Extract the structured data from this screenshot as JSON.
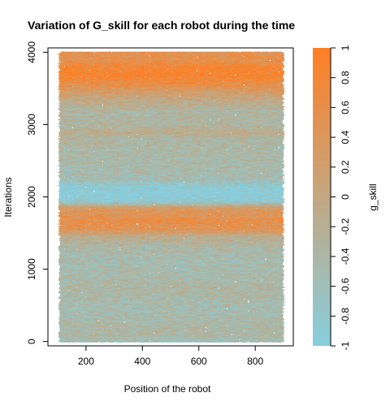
{
  "chart_data": {
    "type": "scatter",
    "title": "Variation of G_skill for each robot during the time",
    "xlabel": "Position of the robot",
    "ylabel": "Iterations",
    "xlim": [
      65,
      935
    ],
    "ylim": [
      -60,
      4060
    ],
    "x_ticks": [
      200,
      400,
      600,
      800
    ],
    "y_ticks": [
      0,
      1000,
      2000,
      3000,
      4000
    ],
    "x_range": [
      110,
      900
    ],
    "y_range": [
      0,
      4000
    ],
    "color_variable": "g_skill",
    "colorbar": {
      "label": "g_skill",
      "range": [
        -1,
        1
      ],
      "ticks": [
        -1,
        -0.8,
        -0.6,
        -0.4,
        -0.2,
        0,
        0.2,
        0.4,
        0.6,
        0.8,
        1
      ],
      "tick_labels": [
        "-1",
        "-0.8",
        "-0.6",
        "-0.4",
        "-0.2",
        "0",
        "0.2",
        "0.4",
        "0.6",
        "0.8",
        "1"
      ],
      "low_color": "#87CEDE",
      "high_color": "#FF7F24"
    },
    "band_profile": {
      "iterations": [
        0,
        100,
        300,
        500,
        700,
        900,
        1100,
        1300,
        1450,
        1550,
        1650,
        1750,
        1850,
        1950,
        2050,
        2150,
        2250,
        2400,
        2600,
        2800,
        2900,
        3000,
        3200,
        3400,
        3500,
        3600,
        3700,
        3800,
        3900,
        4000
      ],
      "mean_g_skill": [
        -0.6,
        -0.35,
        -0.45,
        -0.5,
        -0.35,
        -0.45,
        -0.5,
        -0.4,
        -0.15,
        0.45,
        0.6,
        0.5,
        0.3,
        -0.9,
        -1.0,
        -0.9,
        -0.5,
        -0.45,
        -0.4,
        -0.35,
        -0.15,
        -0.35,
        -0.35,
        0.1,
        0.4,
        0.7,
        0.9,
        0.8,
        0.55,
        0.5
      ]
    }
  }
}
